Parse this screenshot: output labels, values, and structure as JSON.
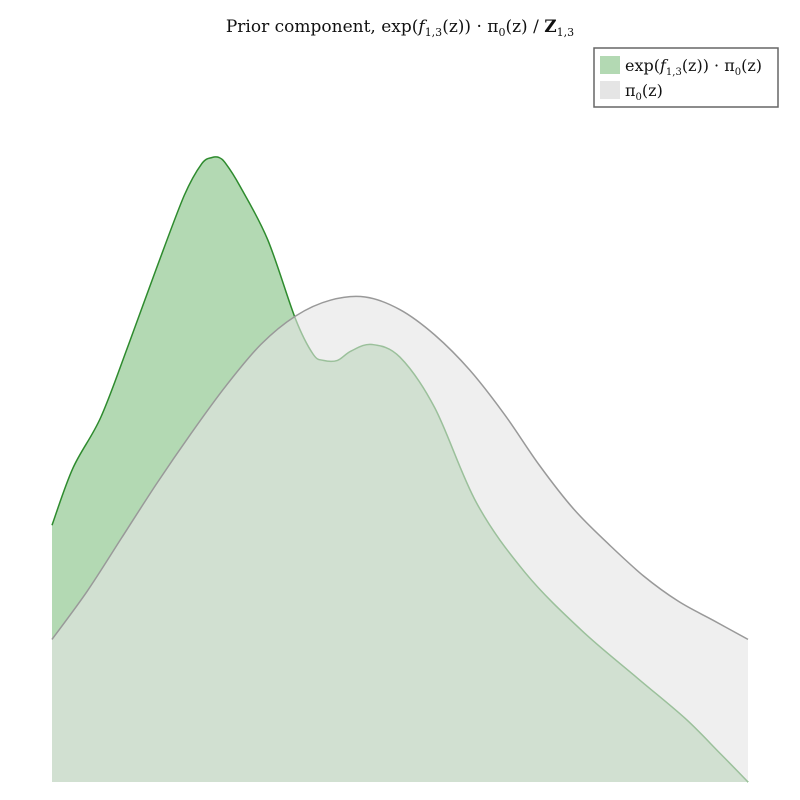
{
  "chart_data": {
    "type": "area",
    "title": "Prior component, exp(f1,3(z)) · π0(z) / Z1,3",
    "title_parts": {
      "prefix": "Prior component, exp(",
      "f": "f",
      "f_sub": "1,3",
      "mid": "(z)) · π",
      "pi_sub": "0",
      "end": "(z) / ",
      "Z": "Z",
      "Z_sub": "1,3"
    },
    "xlabel": "",
    "ylabel": "",
    "axes_visible": false,
    "grid": false,
    "legend_position": "top-right",
    "xlim": [
      0,
      1
    ],
    "ylim": [
      0,
      1
    ],
    "series": [
      {
        "name": "exp(f1,3(z)) · π0(z)",
        "legend_parts": {
          "a": "exp(",
          "f": "f",
          "f_sub": "1,3",
          "b": "(z)) · π",
          "pi_sub": "0",
          "c": "(z)"
        },
        "fill": "#b3d9b3",
        "stroke": "#2e8b2e",
        "x": [
          0,
          0.03,
          0.07,
          0.11,
          0.15,
          0.19,
          0.215,
          0.23,
          0.24,
          0.25,
          0.27,
          0.31,
          0.35,
          0.375,
          0.39,
          0.41,
          0.43,
          0.46,
          0.5,
          0.55,
          0.61,
          0.68,
          0.76,
          0.84,
          0.91,
          0.96,
          1.0
        ],
        "values": [
          0.405,
          0.495,
          0.575,
          0.69,
          0.81,
          0.925,
          0.975,
          0.985,
          0.985,
          0.975,
          0.94,
          0.855,
          0.73,
          0.675,
          0.665,
          0.665,
          0.68,
          0.69,
          0.67,
          0.59,
          0.44,
          0.33,
          0.24,
          0.165,
          0.1,
          0.045,
          0.0
        ]
      },
      {
        "name": "π0(z)",
        "legend_parts": {
          "a": "π",
          "pi_sub": "0",
          "c": "(z)"
        },
        "fill": "#e5e5e5",
        "stroke": "#999999",
        "x": [
          0,
          0.05,
          0.1,
          0.15,
          0.2,
          0.25,
          0.3,
          0.35,
          0.4,
          0.45,
          0.5,
          0.55,
          0.6,
          0.65,
          0.7,
          0.75,
          0.8,
          0.85,
          0.9,
          0.95,
          1.0
        ],
        "values": [
          0.225,
          0.3,
          0.385,
          0.47,
          0.55,
          0.625,
          0.69,
          0.735,
          0.76,
          0.765,
          0.745,
          0.705,
          0.65,
          0.58,
          0.5,
          0.43,
          0.375,
          0.325,
          0.285,
          0.255,
          0.225
        ]
      }
    ]
  }
}
